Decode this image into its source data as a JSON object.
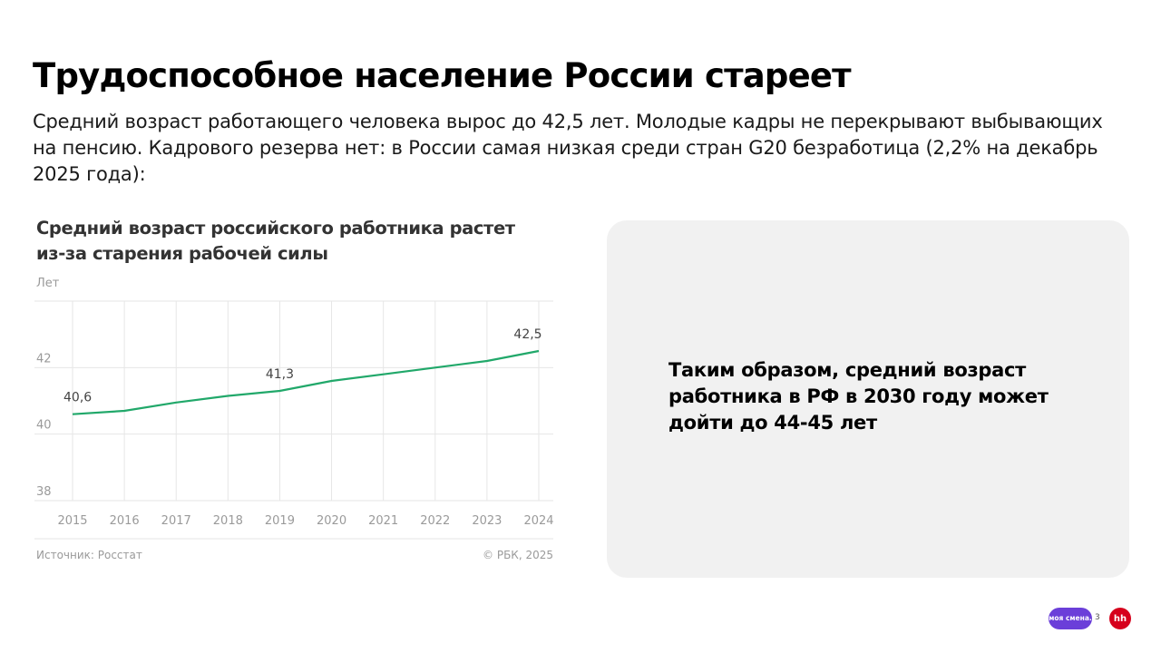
{
  "slide": {
    "title": "Трудоспособное население России стареет",
    "subtitle": "Средний возраст работающего человека вырос до 42,5 лет. Молодые кадры не перекрывают выбывающих на пенсию. Кадрового резерва нет: в России самая низкая среди стран G20 безработица (2,2% на декабрь 2025 года):",
    "conclusion": "Таким образом, средний возраст работника в РФ в 2030 году может дойти до 44-45 лет",
    "page_number": "3"
  },
  "chart_data": {
    "type": "line",
    "title": "Средний возраст российского работника растет из-за старения рабочей силы",
    "ylabel": "Лет",
    "xlabel": "",
    "x": [
      "2015",
      "2016",
      "2017",
      "2018",
      "2019",
      "2020",
      "2021",
      "2022",
      "2023",
      "2024"
    ],
    "series": [
      {
        "values": [
          40.6,
          40.7,
          40.95,
          41.15,
          41.3,
          41.6,
          41.8,
          42.0,
          42.2,
          42.5
        ]
      }
    ],
    "data_labels": [
      {
        "x": "2015",
        "text": "40,6"
      },
      {
        "x": "2019",
        "text": "41,3"
      },
      {
        "x": "2024",
        "text": "42,5"
      }
    ],
    "yticks": [
      {
        "value": 38,
        "label": "38"
      },
      {
        "value": 40,
        "label": "40"
      },
      {
        "value": 42,
        "label": "42"
      }
    ],
    "ylim": [
      38,
      44
    ],
    "grid": true,
    "source": "Источник: Росстат",
    "copyright": "© РБК, 2025",
    "colors": {
      "line": "#21a86a",
      "grid": "#e6e6e6",
      "tick": "#9a9a9a"
    }
  },
  "logos": {
    "moya_smena": "моя смена.",
    "hh": "hh",
    "moya_color": "#6b3fd9",
    "hh_color": "#d6001c"
  }
}
